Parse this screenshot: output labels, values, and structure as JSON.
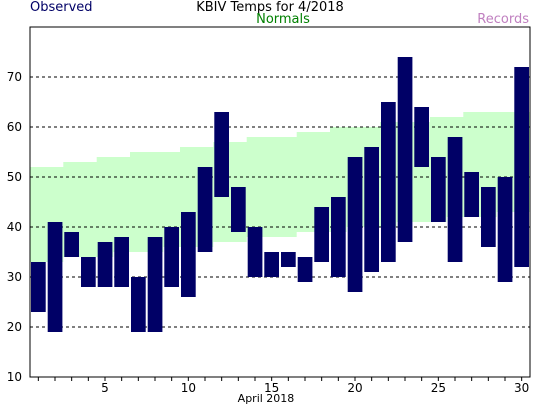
{
  "header": {
    "title": "KBIV Temps for 4/2018",
    "observed_label": "Observed",
    "normals_label": "Normals",
    "records_label": "Records"
  },
  "colors": {
    "observed": "#000066",
    "normals_fill": "#ccffcc",
    "normals_text": "#008000",
    "records_text": "#c080c0",
    "grid": "#000000"
  },
  "chart_data": {
    "type": "bar",
    "title": "KBIV Temps for 4/2018",
    "xlabel": "April 2018",
    "ylabel": "",
    "xlim": [
      1,
      30
    ],
    "ylim": [
      10,
      80
    ],
    "x_ticks": [
      5,
      10,
      15,
      20,
      25,
      30
    ],
    "y_ticks": [
      10,
      20,
      30,
      40,
      50,
      60,
      70
    ],
    "grid": "horizontal dashed",
    "legend": "top",
    "series": [
      {
        "name": "Observed",
        "days": [
          1,
          2,
          3,
          4,
          5,
          6,
          7,
          8,
          9,
          10,
          11,
          12,
          13,
          14,
          15,
          16,
          17,
          18,
          19,
          20,
          21,
          22,
          23,
          24,
          25,
          26,
          27,
          28,
          29,
          30
        ],
        "high": [
          33,
          41,
          39,
          34,
          37,
          38,
          30,
          38,
          40,
          43,
          52,
          63,
          48,
          40,
          35,
          35,
          34,
          44,
          46,
          54,
          56,
          65,
          74,
          64,
          54,
          58,
          51,
          48,
          50,
          72
        ],
        "low": [
          23,
          19,
          34,
          28,
          28,
          28,
          19,
          19,
          28,
          26,
          35,
          46,
          39,
          30,
          30,
          32,
          29,
          33,
          30,
          27,
          31,
          33,
          37,
          52,
          41,
          33,
          42,
          36,
          29,
          32
        ]
      },
      {
        "name": "Normals",
        "days": [
          1,
          2,
          3,
          4,
          5,
          6,
          7,
          8,
          9,
          10,
          11,
          12,
          13,
          14,
          15,
          16,
          17,
          18,
          19,
          20,
          21,
          22,
          23,
          24,
          25,
          26,
          27,
          28,
          29,
          30
        ],
        "high": [
          52,
          52,
          53,
          53,
          54,
          54,
          55,
          55,
          55,
          56,
          56,
          57,
          57,
          58,
          58,
          58,
          59,
          59,
          60,
          60,
          60,
          61,
          61,
          61,
          62,
          62,
          63,
          63,
          63,
          63
        ],
        "low": [
          33,
          33,
          34,
          34,
          34,
          35,
          35,
          35,
          36,
          36,
          36,
          37,
          37,
          38,
          38,
          38,
          39,
          39,
          39,
          40,
          40,
          40,
          41,
          41,
          41,
          42,
          42,
          42,
          43,
          43
        ]
      }
    ]
  }
}
